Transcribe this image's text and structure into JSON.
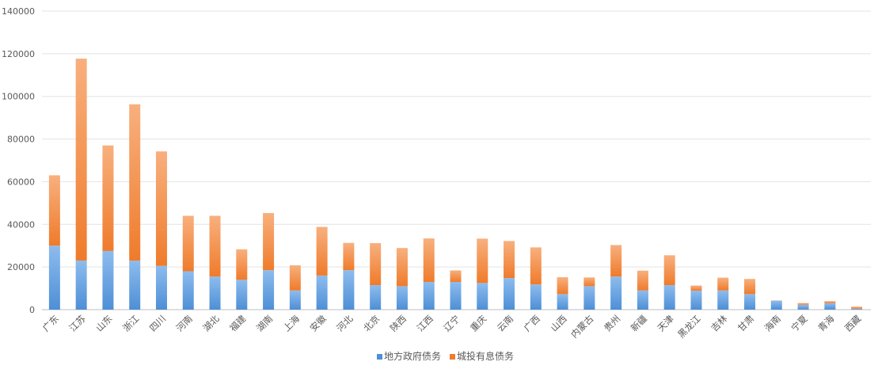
{
  "chart_data": {
    "type": "bar",
    "stacked": true,
    "categories": [
      "广东",
      "江苏",
      "山东",
      "浙江",
      "四川",
      "河南",
      "湖北",
      "福建",
      "湖南",
      "上海",
      "安徽",
      "河北",
      "北京",
      "陕西",
      "江西",
      "辽宁",
      "重庆",
      "云南",
      "广西",
      "山西",
      "内蒙古",
      "贵州",
      "新疆",
      "天津",
      "黑龙江",
      "吉林",
      "甘肃",
      "海南",
      "宁夏",
      "青海",
      "西藏"
    ],
    "series": [
      {
        "name": "地方政府债务",
        "color": "#4e8fd6",
        "color_light": "#8dbcee",
        "values": [
          30000,
          23000,
          27500,
          23000,
          20500,
          18000,
          15500,
          14000,
          18500,
          9000,
          16000,
          18500,
          11500,
          11000,
          13000,
          13000,
          12500,
          14800,
          11800,
          7300,
          11000,
          15500,
          9000,
          11500,
          8900,
          9000,
          7300,
          4200,
          2300,
          3000,
          500
        ]
      },
      {
        "name": "城投有息债务",
        "color": "#ef7b2b",
        "color_light": "#f8b07e",
        "values": [
          33000,
          94700,
          49500,
          73300,
          53700,
          26000,
          28500,
          14300,
          26800,
          11800,
          22800,
          12800,
          19700,
          17900,
          20400,
          5400,
          20800,
          17400,
          17400,
          7900,
          4100,
          14800,
          9300,
          14000,
          2400,
          6000,
          7100,
          100,
          800,
          1000,
          900
        ]
      }
    ],
    "ylim": [
      0,
      140000
    ],
    "yticks": [
      0,
      20000,
      40000,
      60000,
      80000,
      100000,
      120000,
      140000
    ],
    "grid": true,
    "legend_position": "bottom"
  }
}
